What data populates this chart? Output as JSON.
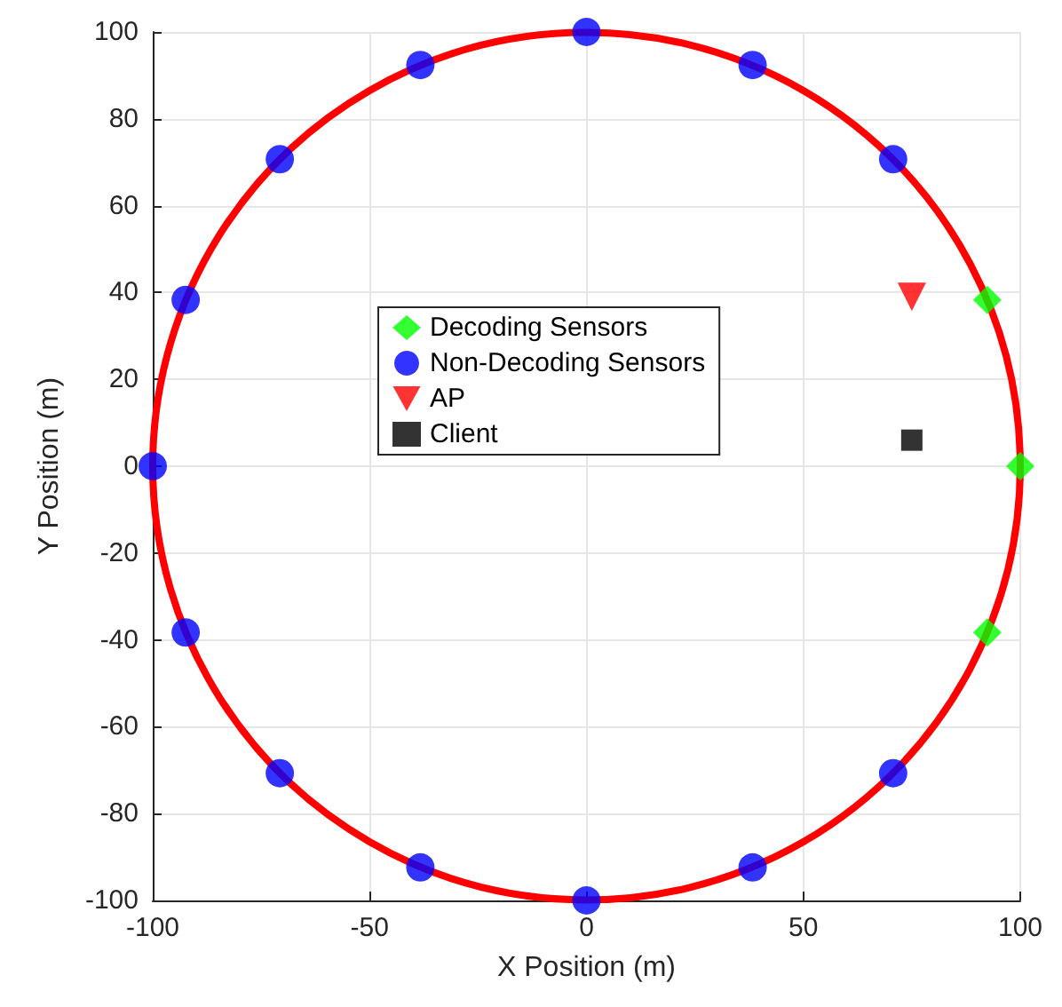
{
  "chart_data": {
    "type": "scatter",
    "xlabel": "X Position (m)",
    "ylabel": "Y Position (m)",
    "xlim": [
      -100,
      100
    ],
    "xticks": [
      -100,
      -50,
      0,
      50,
      100
    ],
    "ylim": [
      -100,
      100
    ],
    "yticks": [
      -100,
      -80,
      -60,
      -40,
      -20,
      0,
      20,
      40,
      60,
      80,
      100
    ],
    "grid": true,
    "legend": "center left",
    "series": [
      {
        "name": "Decoding Sensors",
        "color": "#00ff00",
        "marker": "diamond",
        "x": [
          92.4,
          100,
          92.4
        ],
        "values": [
          38.3,
          0,
          -38.3
        ]
      },
      {
        "name": "Non-Decoding Sensors",
        "color": "#0000ff",
        "marker": "circle",
        "x": [
          70.7,
          38.3,
          0,
          -38.3,
          -70.7,
          -92.4,
          -100,
          -92.4,
          -70.7,
          -38.3,
          0,
          38.3,
          70.7
        ],
        "values": [
          70.7,
          92.4,
          100,
          92.4,
          70.7,
          38.3,
          0,
          -38.3,
          -70.7,
          -92.4,
          -100,
          -92.4,
          -70.7
        ]
      },
      {
        "name": "AP",
        "color": "#ff0000",
        "marker": "triangle",
        "x": [
          75
        ],
        "values": [
          39
        ]
      },
      {
        "name": "Client",
        "color": "#000000",
        "marker": "square",
        "x": [
          75
        ],
        "values": [
          6
        ]
      }
    ]
  }
}
